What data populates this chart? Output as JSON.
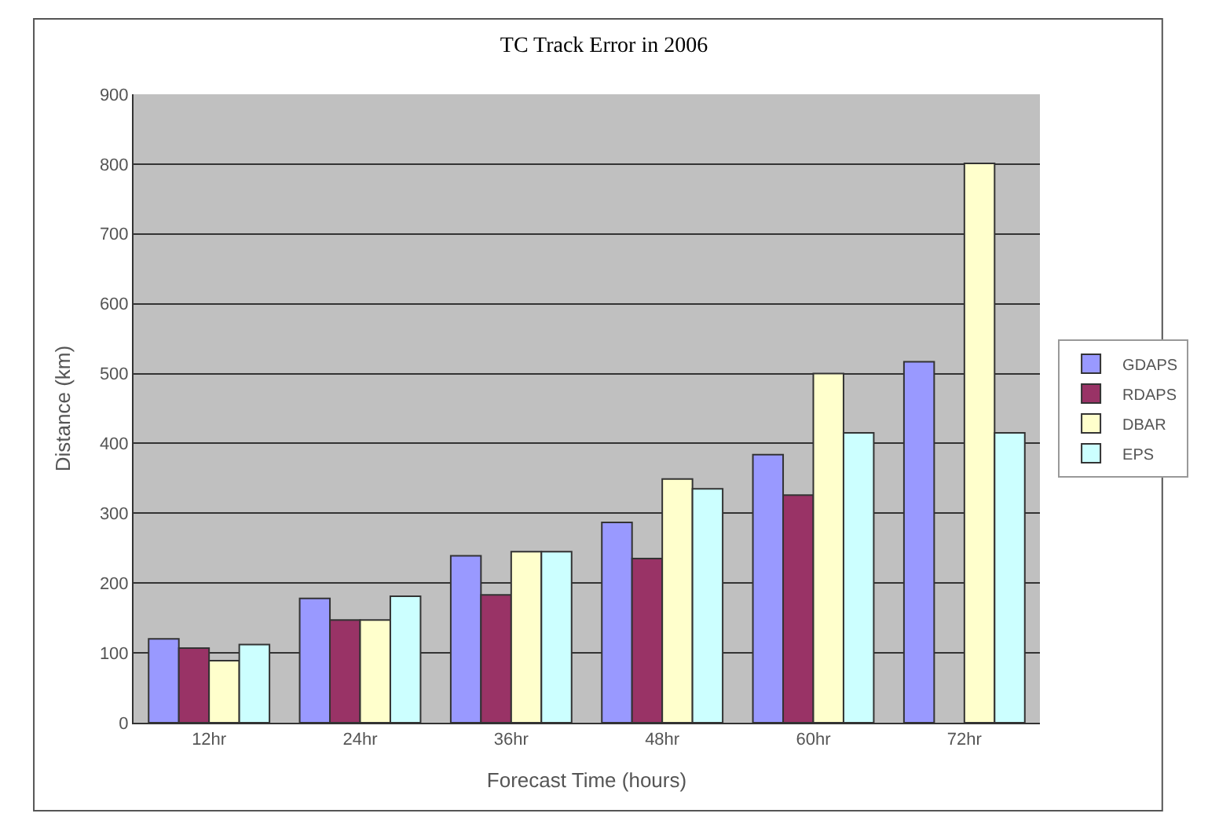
{
  "chart_data": {
    "type": "bar",
    "title": "TC Track Error in 2006",
    "xlabel": "Forecast Time (hours)",
    "ylabel": "Distance (km)",
    "categories": [
      "12hr",
      "24hr",
      "36hr",
      "48hr",
      "60hr",
      "72hr"
    ],
    "series": [
      {
        "name": "GDAPS",
        "color": "#9999ff",
        "values": [
          120,
          178,
          239,
          287,
          384,
          517
        ]
      },
      {
        "name": "RDAPS",
        "color": "#993366",
        "values": [
          107,
          147,
          183,
          235,
          326,
          null
        ]
      },
      {
        "name": "DBAR",
        "color": "#ffffcc",
        "values": [
          89,
          147,
          245,
          349,
          500,
          801
        ]
      },
      {
        "name": "EPS",
        "color": "#ccffff",
        "values": [
          112,
          181,
          245,
          335,
          415,
          415
        ]
      }
    ],
    "ylim": [
      0,
      900
    ],
    "yticks": [
      0,
      100,
      200,
      300,
      400,
      500,
      600,
      700,
      800,
      900
    ],
    "grid": "y",
    "legend": "right"
  }
}
